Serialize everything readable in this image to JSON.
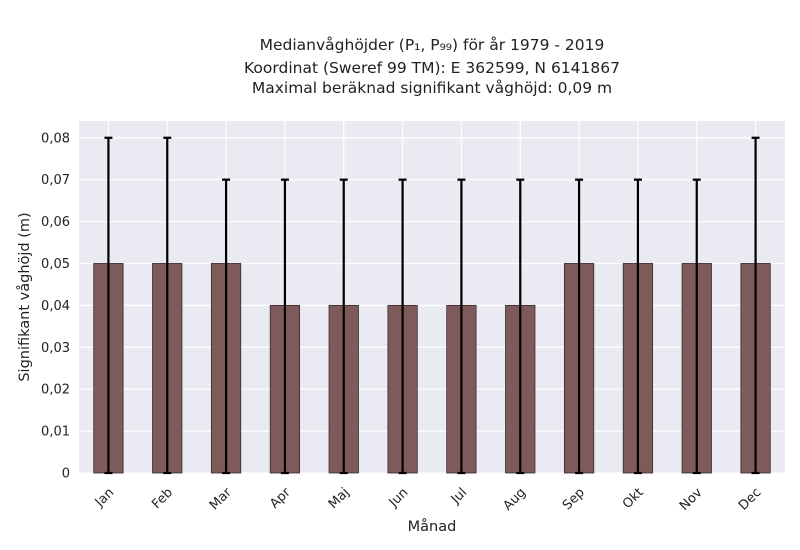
{
  "colors": {
    "background": "#ffffff",
    "plot_background": "#eaeaf2",
    "grid": "#ffffff",
    "bar": "#7d5b5b",
    "bar_edge": "#3a2a2a",
    "error_bar": "#000000"
  },
  "chart_data": {
    "type": "bar",
    "title_lines": [
      "Medianvåghöjder (P₁, P₉₉) för år 1979 - 2019",
      "Koordinat (Sweref 99 TM): E 362599, N 6141867",
      "Maximal beräknad signifikant våghöjd: 0,09 m"
    ],
    "xlabel": "Månad",
    "ylabel": "Signifikant våghöjd (m)",
    "categories": [
      "Jan",
      "Feb",
      "Mar",
      "Apr",
      "Maj",
      "Jun",
      "Jul",
      "Aug",
      "Sep",
      "Okt",
      "Nov",
      "Dec"
    ],
    "values": [
      0.05,
      0.05,
      0.05,
      0.04,
      0.04,
      0.04,
      0.04,
      0.04,
      0.05,
      0.05,
      0.05,
      0.05
    ],
    "error_low": [
      0,
      0,
      0,
      0,
      0,
      0,
      0,
      0,
      0,
      0,
      0,
      0
    ],
    "error_high": [
      0.08,
      0.08,
      0.07,
      0.07,
      0.07,
      0.07,
      0.07,
      0.07,
      0.07,
      0.07,
      0.07,
      0.08
    ],
    "ylim": [
      0,
      0.08
    ],
    "yticks": [
      0,
      0.01,
      0.02,
      0.03,
      0.04,
      0.05,
      0.06,
      0.07,
      0.08
    ],
    "ytick_labels": [
      "0",
      "0,01",
      "0,02",
      "0,03",
      "0,04",
      "0,05",
      "0,06",
      "0,07",
      "0,08"
    ],
    "grid": true,
    "legend": "none"
  }
}
